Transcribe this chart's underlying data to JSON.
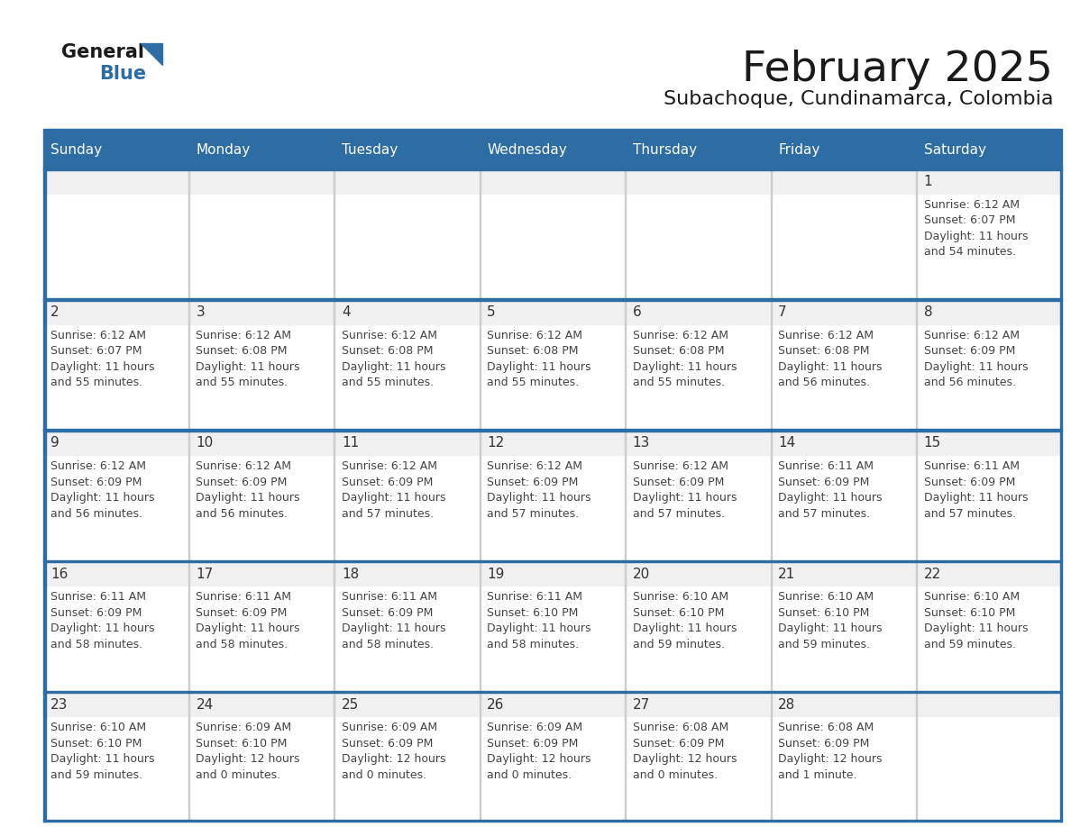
{
  "title": "February 2025",
  "subtitle": "Subachoque, Cundinamarca, Colombia",
  "days_of_week": [
    "Sunday",
    "Monday",
    "Tuesday",
    "Wednesday",
    "Thursday",
    "Friday",
    "Saturday"
  ],
  "header_bg": "#2E6DA4",
  "header_text": "#FFFFFF",
  "cell_bg": "#FFFFFF",
  "cell_top_bg": "#F0F0F0",
  "text_color": "#444444",
  "day_num_color": "#333333",
  "border_color": "#2E6DA4",
  "separator_color": "#2E6DA4",
  "logo_general_color": "#1a1a1a",
  "logo_blue_color": "#2E6DA4",
  "calendar_data": [
    [
      null,
      null,
      null,
      null,
      null,
      null,
      {
        "day": 1,
        "sunrise": "6:12 AM",
        "sunset": "6:07 PM",
        "daylight": "11 hours\nand 54 minutes."
      }
    ],
    [
      {
        "day": 2,
        "sunrise": "6:12 AM",
        "sunset": "6:07 PM",
        "daylight": "11 hours\nand 55 minutes."
      },
      {
        "day": 3,
        "sunrise": "6:12 AM",
        "sunset": "6:08 PM",
        "daylight": "11 hours\nand 55 minutes."
      },
      {
        "day": 4,
        "sunrise": "6:12 AM",
        "sunset": "6:08 PM",
        "daylight": "11 hours\nand 55 minutes."
      },
      {
        "day": 5,
        "sunrise": "6:12 AM",
        "sunset": "6:08 PM",
        "daylight": "11 hours\nand 55 minutes."
      },
      {
        "day": 6,
        "sunrise": "6:12 AM",
        "sunset": "6:08 PM",
        "daylight": "11 hours\nand 55 minutes."
      },
      {
        "day": 7,
        "sunrise": "6:12 AM",
        "sunset": "6:08 PM",
        "daylight": "11 hours\nand 56 minutes."
      },
      {
        "day": 8,
        "sunrise": "6:12 AM",
        "sunset": "6:09 PM",
        "daylight": "11 hours\nand 56 minutes."
      }
    ],
    [
      {
        "day": 9,
        "sunrise": "6:12 AM",
        "sunset": "6:09 PM",
        "daylight": "11 hours\nand 56 minutes."
      },
      {
        "day": 10,
        "sunrise": "6:12 AM",
        "sunset": "6:09 PM",
        "daylight": "11 hours\nand 56 minutes."
      },
      {
        "day": 11,
        "sunrise": "6:12 AM",
        "sunset": "6:09 PM",
        "daylight": "11 hours\nand 57 minutes."
      },
      {
        "day": 12,
        "sunrise": "6:12 AM",
        "sunset": "6:09 PM",
        "daylight": "11 hours\nand 57 minutes."
      },
      {
        "day": 13,
        "sunrise": "6:12 AM",
        "sunset": "6:09 PM",
        "daylight": "11 hours\nand 57 minutes."
      },
      {
        "day": 14,
        "sunrise": "6:11 AM",
        "sunset": "6:09 PM",
        "daylight": "11 hours\nand 57 minutes."
      },
      {
        "day": 15,
        "sunrise": "6:11 AM",
        "sunset": "6:09 PM",
        "daylight": "11 hours\nand 57 minutes."
      }
    ],
    [
      {
        "day": 16,
        "sunrise": "6:11 AM",
        "sunset": "6:09 PM",
        "daylight": "11 hours\nand 58 minutes."
      },
      {
        "day": 17,
        "sunrise": "6:11 AM",
        "sunset": "6:09 PM",
        "daylight": "11 hours\nand 58 minutes."
      },
      {
        "day": 18,
        "sunrise": "6:11 AM",
        "sunset": "6:09 PM",
        "daylight": "11 hours\nand 58 minutes."
      },
      {
        "day": 19,
        "sunrise": "6:11 AM",
        "sunset": "6:10 PM",
        "daylight": "11 hours\nand 58 minutes."
      },
      {
        "day": 20,
        "sunrise": "6:10 AM",
        "sunset": "6:10 PM",
        "daylight": "11 hours\nand 59 minutes."
      },
      {
        "day": 21,
        "sunrise": "6:10 AM",
        "sunset": "6:10 PM",
        "daylight": "11 hours\nand 59 minutes."
      },
      {
        "day": 22,
        "sunrise": "6:10 AM",
        "sunset": "6:10 PM",
        "daylight": "11 hours\nand 59 minutes."
      }
    ],
    [
      {
        "day": 23,
        "sunrise": "6:10 AM",
        "sunset": "6:10 PM",
        "daylight": "11 hours\nand 59 minutes."
      },
      {
        "day": 24,
        "sunrise": "6:09 AM",
        "sunset": "6:10 PM",
        "daylight": "12 hours\nand 0 minutes."
      },
      {
        "day": 25,
        "sunrise": "6:09 AM",
        "sunset": "6:09 PM",
        "daylight": "12 hours\nand 0 minutes."
      },
      {
        "day": 26,
        "sunrise": "6:09 AM",
        "sunset": "6:09 PM",
        "daylight": "12 hours\nand 0 minutes."
      },
      {
        "day": 27,
        "sunrise": "6:08 AM",
        "sunset": "6:09 PM",
        "daylight": "12 hours\nand 0 minutes."
      },
      {
        "day": 28,
        "sunrise": "6:08 AM",
        "sunset": "6:09 PM",
        "daylight": "12 hours\nand 1 minute."
      },
      null
    ]
  ]
}
